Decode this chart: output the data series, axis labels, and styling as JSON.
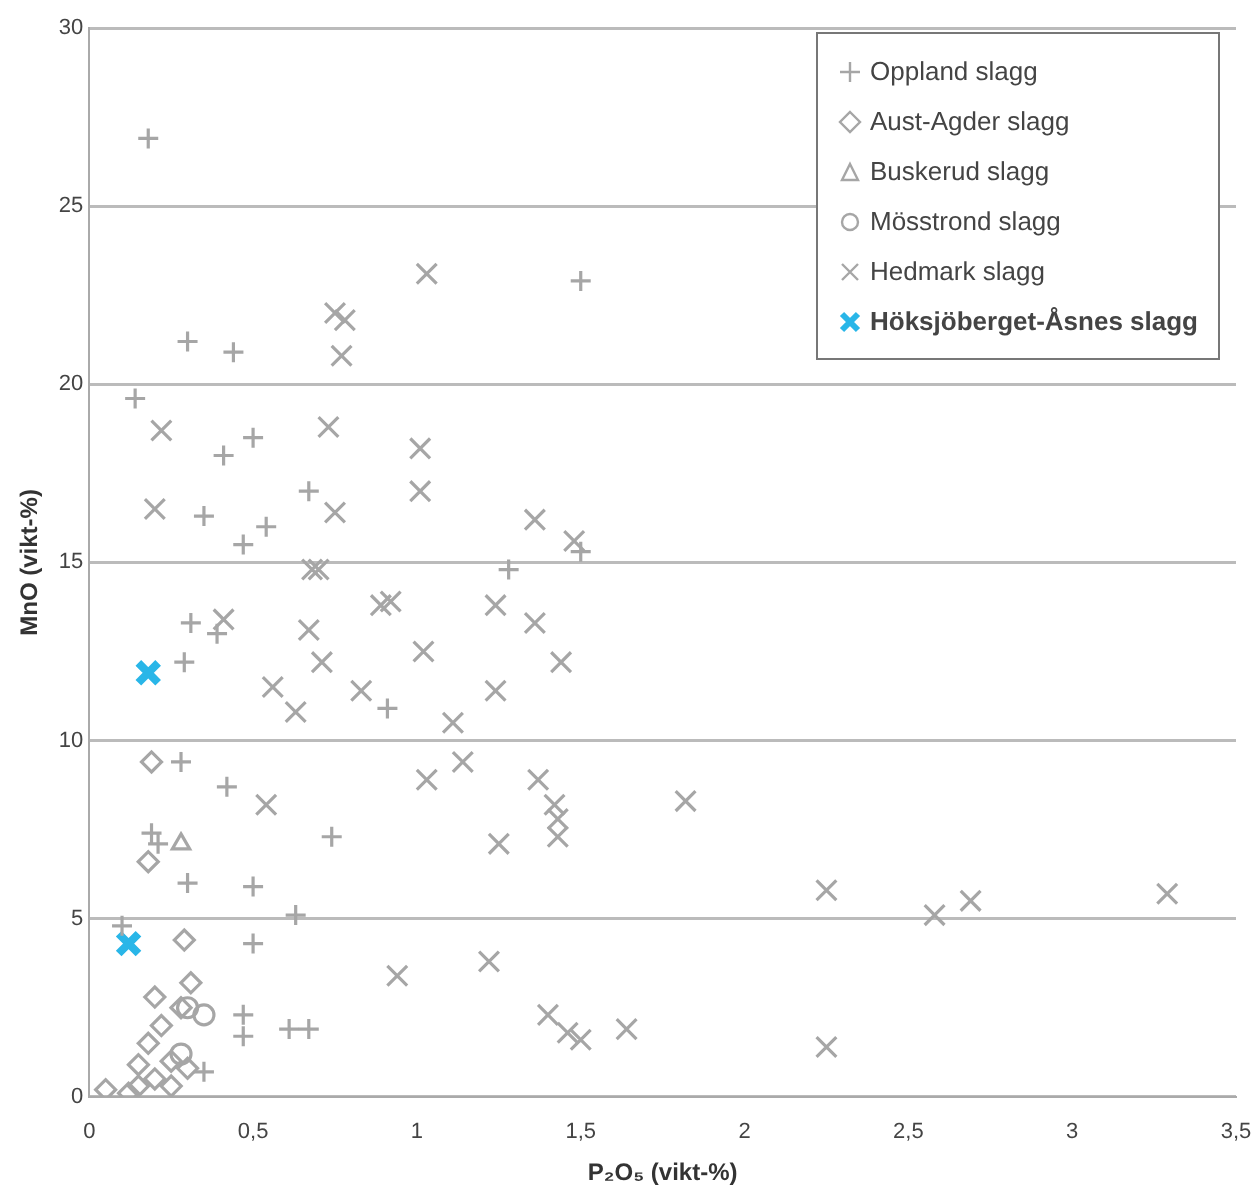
{
  "chart_data": {
    "type": "scatter",
    "xlabel": "P₂O₅ (vikt-%)",
    "ylabel": "MnO (vikt-%)",
    "xlim": [
      0,
      3.5
    ],
    "xticks": [
      0,
      {
        "value": 0.5,
        "label": "0,5"
      },
      1,
      {
        "value": 1.5,
        "label": "1,5"
      },
      2,
      {
        "value": 2.5,
        "label": "2,5"
      },
      3,
      {
        "value": 3.5,
        "label": "3,5"
      }
    ],
    "ylim": [
      0,
      30
    ],
    "yticks": [
      0,
      5,
      10,
      15,
      20,
      25,
      30
    ],
    "grid": "y",
    "legend": "top right",
    "series": [
      {
        "name": "Oppland slagg",
        "color": "#a6a6a6",
        "marker": "plus",
        "x": [
          0.18,
          1.5,
          0.3,
          0.44,
          0.14,
          0.5,
          0.41,
          1.28,
          0.67,
          0.35,
          0.54,
          0.47,
          1.5,
          0.31,
          0.39,
          0.29,
          0.28,
          0.42,
          0.74,
          0.19,
          0.21,
          0.3,
          0.5,
          0.63,
          0.5,
          0.1,
          0.47,
          0.47,
          0.61,
          0.67,
          0.35,
          0.91
        ],
        "values": [
          26.9,
          22.9,
          21.2,
          20.9,
          19.6,
          18.5,
          18.0,
          14.8,
          17.0,
          16.3,
          16.0,
          15.5,
          15.3,
          13.3,
          13.0,
          12.2,
          9.4,
          8.7,
          7.3,
          7.4,
          7.1,
          6.0,
          5.9,
          5.1,
          4.3,
          4.8,
          2.3,
          1.7,
          1.9,
          1.9,
          0.7,
          10.9
        ]
      },
      {
        "name": "Aust-Agder slagg",
        "color": "#a6a6a6",
        "marker": "diamond",
        "x": [
          0.19,
          0.18,
          0.29,
          0.31,
          0.05,
          0.15,
          0.2,
          0.25,
          0.18,
          0.22,
          0.28,
          0.3,
          0.15,
          0.2,
          0.12,
          0.25
        ],
        "values": [
          9.4,
          6.6,
          4.4,
          3.2,
          0.2,
          0.3,
          0.5,
          1.0,
          1.5,
          2.0,
          2.5,
          0.8,
          0.9,
          2.8,
          0.1,
          0.3
        ]
      },
      {
        "name": "Buskerud slagg",
        "color": "#a6a6a6",
        "marker": "triangle",
        "x": [
          0.28
        ],
        "values": [
          7.1
        ]
      },
      {
        "name": "Mösstrond slagg",
        "color": "#a6a6a6",
        "marker": "circle",
        "x": [
          0.3,
          0.35,
          0.28
        ],
        "values": [
          2.5,
          2.3,
          1.2
        ]
      },
      {
        "name": "Hedmark slagg",
        "color": "#a6a6a6",
        "marker": "cross",
        "x": [
          1.03,
          0.75,
          0.78,
          0.77,
          0.22,
          0.73,
          1.01,
          1.01,
          0.2,
          0.75,
          1.36,
          1.48,
          0.68,
          0.7,
          0.41,
          0.67,
          0.89,
          0.92,
          1.24,
          1.36,
          1.02,
          1.44,
          0.71,
          0.56,
          0.83,
          1.24,
          0.63,
          1.11,
          1.14,
          1.03,
          1.37,
          1.42,
          1.43,
          1.43,
          1.25,
          0.54,
          0.94,
          1.22,
          1.4,
          1.46,
          1.5,
          1.64,
          1.82,
          2.25,
          2.58,
          2.69,
          3.29,
          2.25
        ],
        "values": [
          23.1,
          22.0,
          21.8,
          20.8,
          18.7,
          18.8,
          18.2,
          17.0,
          16.5,
          16.4,
          16.2,
          15.6,
          14.8,
          14.8,
          13.4,
          13.1,
          13.8,
          13.9,
          13.8,
          13.3,
          12.5,
          12.2,
          12.2,
          11.5,
          11.4,
          11.4,
          10.8,
          10.5,
          9.4,
          8.9,
          8.9,
          8.2,
          7.8,
          7.3,
          7.1,
          8.2,
          3.4,
          3.8,
          2.3,
          1.8,
          1.6,
          1.9,
          8.3,
          5.8,
          5.1,
          5.5,
          5.7,
          1.4
        ]
      },
      {
        "name": "Höksjöberget-Åsnes slagg",
        "color": "#29b6e8",
        "marker": "cross",
        "x": [
          0.18,
          0.12
        ],
        "values": [
          11.9,
          4.3
        ]
      }
    ]
  }
}
